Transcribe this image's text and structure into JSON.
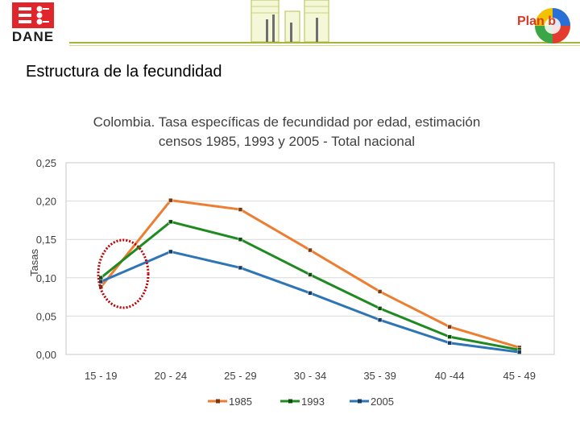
{
  "header": {
    "logo_text": "DANE",
    "plan_logo_text": "Plan b"
  },
  "page_title": "Estructura de la fecundidad",
  "colors": {
    "s1985": "#ed7d31",
    "s1993": "#1f8a1f",
    "s2005": "#2d75b6",
    "highlight": "#c00000"
  },
  "chart_data": {
    "type": "line",
    "title_line1": "Colombia. Tasa específicas de fecundidad por edad, estimación",
    "title_line2": "censos 1985, 1993 y 2005 - Total nacional",
    "ylabel": "Tasas",
    "xlabel": "",
    "categories": [
      "15 - 19",
      "20 - 24",
      "25 - 29",
      "30 - 34",
      "35 - 39",
      "40 -44",
      "45 - 49"
    ],
    "yticks": [
      "0,00",
      "0,05",
      "0,10",
      "0,15",
      "0,20",
      "0,25"
    ],
    "ylim": [
      0,
      0.25
    ],
    "grid": true,
    "legend_position": "bottom",
    "series": [
      {
        "name": "1985",
        "values": [
          0.088,
          0.201,
          0.189,
          0.136,
          0.082,
          0.036,
          0.009
        ]
      },
      {
        "name": "1993",
        "values": [
          0.1,
          0.173,
          0.15,
          0.104,
          0.06,
          0.023,
          0.006
        ]
      },
      {
        "name": "2005",
        "values": [
          0.095,
          0.134,
          0.113,
          0.08,
          0.045,
          0.015,
          0.003
        ]
      }
    ],
    "annotation": "circle around 15 - 19"
  }
}
